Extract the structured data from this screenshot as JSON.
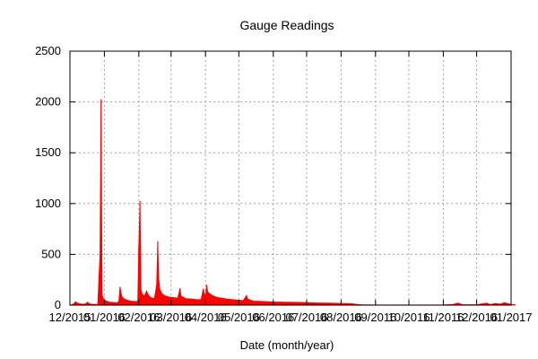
{
  "chart_data": {
    "type": "area",
    "title": "Gauge Readings",
    "xlabel": "Date (month/year)",
    "ylabel": "",
    "ylim": [
      0,
      2500
    ],
    "y_ticks": [
      0,
      500,
      1000,
      1500,
      2000,
      2500
    ],
    "x_tick_labels": [
      "12/2015",
      "01/2016",
      "02/2016",
      "03/2016",
      "04/2016",
      "05/2016",
      "06/2016",
      "07/2016",
      "08/2016",
      "09/2016",
      "10/2016",
      "11/2016",
      "12/2016",
      "01/2017"
    ],
    "grid": true,
    "legend": "none",
    "series": [
      {
        "color": "#ff0000",
        "points": [
          [
            "2015-12-01",
            0
          ],
          [
            "2015-12-03",
            5
          ],
          [
            "2015-12-05",
            20
          ],
          [
            "2015-12-06",
            35
          ],
          [
            "2015-12-07",
            25
          ],
          [
            "2015-12-09",
            15
          ],
          [
            "2015-12-12",
            10
          ],
          [
            "2015-12-15",
            12
          ],
          [
            "2015-12-17",
            30
          ],
          [
            "2015-12-18",
            15
          ],
          [
            "2015-12-20",
            10
          ],
          [
            "2015-12-24",
            8
          ],
          [
            "2015-12-26",
            10
          ],
          [
            "2015-12-28",
            500
          ],
          [
            "2015-12-29",
            2025
          ],
          [
            "2015-12-30",
            100
          ],
          [
            "2015-12-31",
            60
          ],
          [
            "2016-01-02",
            45
          ],
          [
            "2016-01-04",
            35
          ],
          [
            "2016-01-06",
            30
          ],
          [
            "2016-01-08",
            28
          ],
          [
            "2016-01-10",
            25
          ],
          [
            "2016-01-12",
            22
          ],
          [
            "2016-01-14",
            35
          ],
          [
            "2016-01-15",
            180
          ],
          [
            "2016-01-16",
            120
          ],
          [
            "2016-01-17",
            80
          ],
          [
            "2016-01-19",
            60
          ],
          [
            "2016-01-21",
            50
          ],
          [
            "2016-01-23",
            45
          ],
          [
            "2016-01-25",
            40
          ],
          [
            "2016-01-27",
            38
          ],
          [
            "2016-01-29",
            36
          ],
          [
            "2016-01-31",
            40
          ],
          [
            "2016-02-01",
            580
          ],
          [
            "2016-02-02",
            1025
          ],
          [
            "2016-02-03",
            150
          ],
          [
            "2016-02-04",
            110
          ],
          [
            "2016-02-06",
            90
          ],
          [
            "2016-02-08",
            140
          ],
          [
            "2016-02-09",
            110
          ],
          [
            "2016-02-11",
            80
          ],
          [
            "2016-02-13",
            70
          ],
          [
            "2016-02-15",
            65
          ],
          [
            "2016-02-17",
            200
          ],
          [
            "2016-02-18",
            630
          ],
          [
            "2016-02-19",
            250
          ],
          [
            "2016-02-20",
            150
          ],
          [
            "2016-02-22",
            110
          ],
          [
            "2016-02-25",
            90
          ],
          [
            "2016-02-28",
            80
          ],
          [
            "2016-03-03",
            75
          ],
          [
            "2016-03-07",
            70
          ],
          [
            "2016-03-09",
            165
          ],
          [
            "2016-03-10",
            90
          ],
          [
            "2016-03-14",
            65
          ],
          [
            "2016-03-19",
            60
          ],
          [
            "2016-03-24",
            55
          ],
          [
            "2016-03-28",
            55
          ],
          [
            "2016-03-30",
            160
          ],
          [
            "2016-03-31",
            110
          ],
          [
            "2016-04-01",
            90
          ],
          [
            "2016-04-02",
            200
          ],
          [
            "2016-04-03",
            130
          ],
          [
            "2016-04-05",
            110
          ],
          [
            "2016-04-08",
            90
          ],
          [
            "2016-04-12",
            75
          ],
          [
            "2016-04-16",
            70
          ],
          [
            "2016-04-20",
            60
          ],
          [
            "2016-04-25",
            55
          ],
          [
            "2016-04-30",
            50
          ],
          [
            "2016-05-05",
            45
          ],
          [
            "2016-05-08",
            95
          ],
          [
            "2016-05-09",
            60
          ],
          [
            "2016-05-14",
            40
          ],
          [
            "2016-05-20",
            38
          ],
          [
            "2016-05-25",
            35
          ],
          [
            "2016-06-01",
            32
          ],
          [
            "2016-06-10",
            30
          ],
          [
            "2016-06-20",
            28
          ],
          [
            "2016-07-01",
            25
          ],
          [
            "2016-07-10",
            22
          ],
          [
            "2016-07-20",
            20
          ],
          [
            "2016-08-01",
            18
          ],
          [
            "2016-08-10",
            15
          ],
          [
            "2016-08-15",
            8
          ],
          [
            "2016-08-20",
            4
          ],
          [
            "2016-09-01",
            2
          ],
          [
            "2016-10-01",
            2
          ],
          [
            "2016-11-01",
            3
          ],
          [
            "2016-11-10",
            8
          ],
          [
            "2016-11-14",
            20
          ],
          [
            "2016-11-18",
            5
          ],
          [
            "2016-12-01",
            4
          ],
          [
            "2016-12-05",
            12
          ],
          [
            "2016-12-10",
            20
          ],
          [
            "2016-12-13",
            5
          ],
          [
            "2016-12-18",
            18
          ],
          [
            "2016-12-22",
            10
          ],
          [
            "2016-12-26",
            25
          ],
          [
            "2016-12-29",
            15
          ],
          [
            "2017-01-01",
            8
          ],
          [
            "2017-01-04",
            5
          ],
          [
            "2017-01-05",
            0
          ]
        ]
      }
    ]
  }
}
